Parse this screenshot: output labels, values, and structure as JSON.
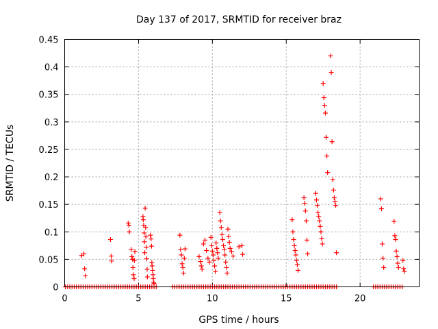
{
  "chart_data": {
    "type": "scatter",
    "title": "Day 137 of 2017, SRMTID for receiver braz",
    "xlabel": "GPS time / hours",
    "ylabel": "SRMTID / TECUs",
    "xlim": [
      0,
      24
    ],
    "ylim": [
      0,
      0.45
    ],
    "xticks": [
      0,
      5,
      10,
      15,
      20
    ],
    "yticks": [
      0,
      0.05,
      0.1,
      0.15,
      0.2,
      0.25,
      0.3,
      0.35,
      0.4,
      0.45
    ],
    "xtick_labels": [
      "0",
      "5",
      "10",
      "15",
      "20"
    ],
    "ytick_labels": [
      "0",
      "0.05",
      "0.1",
      "0.15",
      "0.2",
      "0.25",
      "0.3",
      "0.35",
      "0.4",
      "0.45"
    ],
    "grid": true,
    "marker": "+",
    "color": "#ff0000",
    "series": [
      {
        "name": "SRMTID",
        "x": [
          1.15,
          1.3,
          1.35,
          1.4,
          3.1,
          3.15,
          3.18,
          4.3,
          4.35,
          4.38,
          4.5,
          4.55,
          4.6,
          4.62,
          4.65,
          4.7,
          4.72,
          4.75,
          5.3,
          5.32,
          5.35,
          5.38,
          5.4,
          5.42,
          5.45,
          5.48,
          5.5,
          5.52,
          5.55,
          5.58,
          5.6,
          5.8,
          5.85,
          5.88,
          5.9,
          5.92,
          5.95,
          5.98,
          6.0,
          6.02,
          6.05,
          7.8,
          7.85,
          7.9,
          7.95,
          8.0,
          8.05,
          8.1,
          8.15,
          9.1,
          9.2,
          9.25,
          9.3,
          9.4,
          9.5,
          9.6,
          9.7,
          9.8,
          9.9,
          9.95,
          10.0,
          10.05,
          10.1,
          10.15,
          10.2,
          10.25,
          10.3,
          10.35,
          10.4,
          10.5,
          10.55,
          10.6,
          10.65,
          10.7,
          10.75,
          10.8,
          10.85,
          10.9,
          10.95,
          11.0,
          11.05,
          11.1,
          11.15,
          11.2,
          11.3,
          11.4,
          11.8,
          12.0,
          12.05,
          15.4,
          15.45,
          15.5,
          15.55,
          15.6,
          15.65,
          15.7,
          15.75,
          15.8,
          16.2,
          16.25,
          16.3,
          16.35,
          16.4,
          16.45,
          17.0,
          17.05,
          17.1,
          17.15,
          17.2,
          17.25,
          17.3,
          17.35,
          17.4,
          17.45,
          17.5,
          17.55,
          17.6,
          17.65,
          17.7,
          17.75,
          17.8,
          18.0,
          18.05,
          18.1,
          18.15,
          18.2,
          18.25,
          18.3,
          18.35,
          18.4,
          21.4,
          21.45,
          21.5,
          21.55,
          21.6,
          22.3,
          22.35,
          22.4,
          22.45,
          22.5,
          22.55,
          22.6,
          22.9,
          22.95,
          23.0
        ],
        "y": [
          0.057,
          0.06,
          0.033,
          0.02,
          0.086,
          0.056,
          0.047,
          0.116,
          0.112,
          0.1,
          0.068,
          0.055,
          0.05,
          0.035,
          0.022,
          0.015,
          0.048,
          0.064,
          0.128,
          0.122,
          0.112,
          0.098,
          0.082,
          0.062,
          0.143,
          0.108,
          0.091,
          0.072,
          0.051,
          0.032,
          0.018,
          0.094,
          0.087,
          0.074,
          0.044,
          0.038,
          0.03,
          0.022,
          0.015,
          0.008,
          0.006,
          0.094,
          0.068,
          0.058,
          0.042,
          0.035,
          0.025,
          0.052,
          0.069,
          0.055,
          0.046,
          0.038,
          0.032,
          0.078,
          0.085,
          0.066,
          0.052,
          0.045,
          0.09,
          0.075,
          0.065,
          0.058,
          0.048,
          0.038,
          0.028,
          0.08,
          0.07,
          0.062,
          0.052,
          0.135,
          0.12,
          0.108,
          0.095,
          0.086,
          0.075,
          0.068,
          0.058,
          0.045,
          0.035,
          0.025,
          0.105,
          0.092,
          0.081,
          0.07,
          0.064,
          0.056,
          0.073,
          0.075,
          0.059,
          0.122,
          0.1,
          0.086,
          0.075,
          0.066,
          0.058,
          0.048,
          0.04,
          0.03,
          0.162,
          0.152,
          0.138,
          0.12,
          0.085,
          0.06,
          0.17,
          0.158,
          0.148,
          0.135,
          0.128,
          0.12,
          0.11,
          0.1,
          0.088,
          0.078,
          0.37,
          0.344,
          0.33,
          0.316,
          0.272,
          0.238,
          0.208,
          0.42,
          0.39,
          0.264,
          0.195,
          0.176,
          0.162,
          0.155,
          0.148,
          0.062,
          0.16,
          0.142,
          0.078,
          0.052,
          0.035,
          0.119,
          0.093,
          0.086,
          0.065,
          0.055,
          0.043,
          0.035,
          0.048,
          0.033,
          0.028
        ]
      }
    ],
    "zero_times": [
      0.05,
      0.2,
      0.35,
      0.5,
      0.65,
      0.8,
      0.95,
      1.1,
      1.25,
      1.4,
      1.55,
      1.7,
      1.85,
      2.0,
      2.15,
      2.3,
      2.45,
      2.6,
      2.75,
      2.9,
      3.05,
      3.2,
      3.35,
      3.5,
      3.65,
      3.8,
      3.95,
      4.1,
      4.25,
      4.4,
      4.55,
      4.7,
      4.85,
      5.0,
      5.15,
      5.3,
      5.45,
      5.6,
      5.75,
      5.9,
      6.05,
      6.2,
      7.3,
      7.45,
      7.6,
      7.75,
      7.9,
      8.05,
      8.2,
      8.35,
      8.5,
      8.65,
      8.8,
      8.95,
      9.1,
      9.25,
      9.4,
      9.55,
      9.7,
      9.85,
      10.0,
      10.15,
      10.3,
      10.45,
      10.6,
      10.75,
      10.9,
      11.05,
      11.2,
      11.35,
      11.5,
      11.65,
      11.8,
      11.95,
      12.1,
      12.25,
      12.4,
      12.55,
      12.7,
      12.85,
      13.0,
      13.15,
      13.3,
      13.45,
      13.6,
      13.75,
      13.9,
      14.05,
      14.2,
      14.35,
      14.5,
      14.65,
      14.8,
      14.95,
      15.1,
      15.25,
      15.4,
      15.55,
      15.7,
      15.85,
      16.0,
      16.15,
      16.3,
      16.45,
      16.6,
      16.75,
      16.9,
      17.05,
      17.2,
      17.35,
      17.5,
      17.65,
      17.8,
      17.95,
      18.1,
      18.25,
      18.4,
      20.9,
      21.05,
      21.2,
      21.35,
      21.5,
      21.65,
      21.8,
      21.95,
      22.1,
      22.25,
      22.4,
      22.55,
      22.7,
      22.85
    ]
  }
}
